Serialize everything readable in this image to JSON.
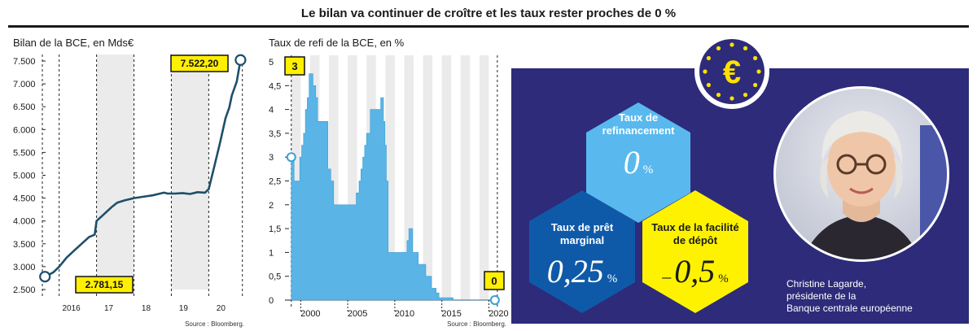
{
  "headline": "Le bilan va continuer de croître et les taux rester proches de 0 %",
  "chart_data": [
    {
      "type": "line",
      "title": "Bilan de la BCE, en Mds€",
      "xlabel": "",
      "ylabel": "",
      "x_tick_labels": [
        "2016",
        "17",
        "18",
        "19",
        "20"
      ],
      "y_tick_labels": [
        "2.500",
        "3.000",
        "3.500",
        "4.000",
        "4.500",
        "5.000",
        "5.500",
        "6.000",
        "6.500",
        "7.000",
        "7.500"
      ],
      "ylim": [
        2500,
        7500
      ],
      "xlim": [
        2015.55,
        2020.95
      ],
      "x": [
        2015.62,
        2015.72,
        2015.85,
        2016.0,
        2016.2,
        2016.4,
        2016.6,
        2016.8,
        2016.95,
        2017.0,
        2017.2,
        2017.4,
        2017.55,
        2017.75,
        2018.0,
        2018.25,
        2018.5,
        2018.7,
        2018.8,
        2018.9,
        2019.1,
        2019.3,
        2019.5,
        2019.7,
        2019.9,
        2020.0,
        2020.15,
        2020.3,
        2020.45,
        2020.55,
        2020.62,
        2020.75,
        2020.85
      ],
      "values": [
        2781.15,
        2820,
        2880,
        3000,
        3200,
        3350,
        3500,
        3650,
        3700,
        4000,
        4150,
        4300,
        4400,
        4450,
        4500,
        4530,
        4560,
        4600,
        4620,
        4600,
        4600,
        4610,
        4590,
        4630,
        4620,
        4700,
        5200,
        5700,
        6250,
        6480,
        6750,
        7050,
        7522.2
      ],
      "annotations": [
        {
          "label": "2.781,15",
          "x": 2015.62,
          "y": 2781.15
        },
        {
          "label": "7.522,20",
          "x": 2020.85,
          "y": 7522.2
        }
      ],
      "source": "Source : Bloomberg.",
      "grid": "vertical dashed lines, alternating grey year bands",
      "colors": {
        "line": "#1d4f6b",
        "label_box": "#ffef00",
        "band": "#ebebeb"
      }
    },
    {
      "type": "area",
      "title": "Taux de refi de la BCE, en %",
      "xlabel": "",
      "ylabel": "",
      "x_tick_labels": [
        "2000",
        "2005",
        "2010",
        "2015",
        "2020"
      ],
      "y_tick_labels": [
        "0",
        "0,5",
        "1",
        "1,5",
        "2",
        "2,5",
        "3",
        "3,5",
        "4",
        "4,5",
        "5"
      ],
      "ylim": [
        0,
        5
      ],
      "xlim": [
        1998.5,
        2021.0
      ],
      "x": [
        1999.0,
        1999.3,
        1999.9,
        2000.1,
        2000.3,
        2000.5,
        2000.7,
        2000.9,
        2001.3,
        2001.6,
        2001.8,
        2002.9,
        2003.2,
        2003.5,
        2005.9,
        2006.2,
        2006.4,
        2006.6,
        2006.8,
        2007.0,
        2007.4,
        2008.5,
        2008.8,
        2008.95,
        2009.1,
        2009.3,
        2011.3,
        2011.5,
        2011.9,
        2012.5,
        2013.3,
        2013.9,
        2014.4,
        2014.7,
        2016.2,
        2020.9
      ],
      "values": [
        3.0,
        2.5,
        3.0,
        3.25,
        3.5,
        4.0,
        4.25,
        4.75,
        4.5,
        4.25,
        3.75,
        2.75,
        2.5,
        2.0,
        2.25,
        2.5,
        2.75,
        3.0,
        3.25,
        3.5,
        4.0,
        4.25,
        3.75,
        3.25,
        2.5,
        1.0,
        1.25,
        1.5,
        1.0,
        0.75,
        0.5,
        0.25,
        0.15,
        0.05,
        0.0,
        0.0
      ],
      "annotations": [
        {
          "label": "3",
          "x": 1999.0,
          "y": 3.0
        },
        {
          "label": "0",
          "x": 2020.9,
          "y": 0.0
        }
      ],
      "source": "Source : Bloomberg.",
      "grid": "vertical dashed lines, alternating grey year bands",
      "colors": {
        "area": "#5ab4e6",
        "label_box": "#ffef00",
        "band": "#ebebeb"
      }
    }
  ],
  "panel": {
    "background": "#2d2b7a",
    "logo_symbol": "€",
    "logo_icon": "ecb-euro-logo-icon",
    "hex_refi": {
      "label_line1": "Taux de",
      "label_line2": "refinancement",
      "value": "0",
      "unit": "%",
      "color": "#59b9ee"
    },
    "hex_marginal": {
      "label_line1": "Taux de prêt",
      "label_line2": "marginal",
      "value": "0,25",
      "unit": "%",
      "color": "#0f5aa8"
    },
    "hex_depot": {
      "label_line1": "Taux de la facilité",
      "label_line2": "de dépôt",
      "value": "0,5",
      "sign": "–",
      "unit": "%",
      "color": "#fff200"
    },
    "portrait_icon": "portrait-photo-icon",
    "caption": {
      "line1": "Christine Lagarde,",
      "line2": "présidente de la",
      "line3": "Banque centrale européenne"
    }
  }
}
